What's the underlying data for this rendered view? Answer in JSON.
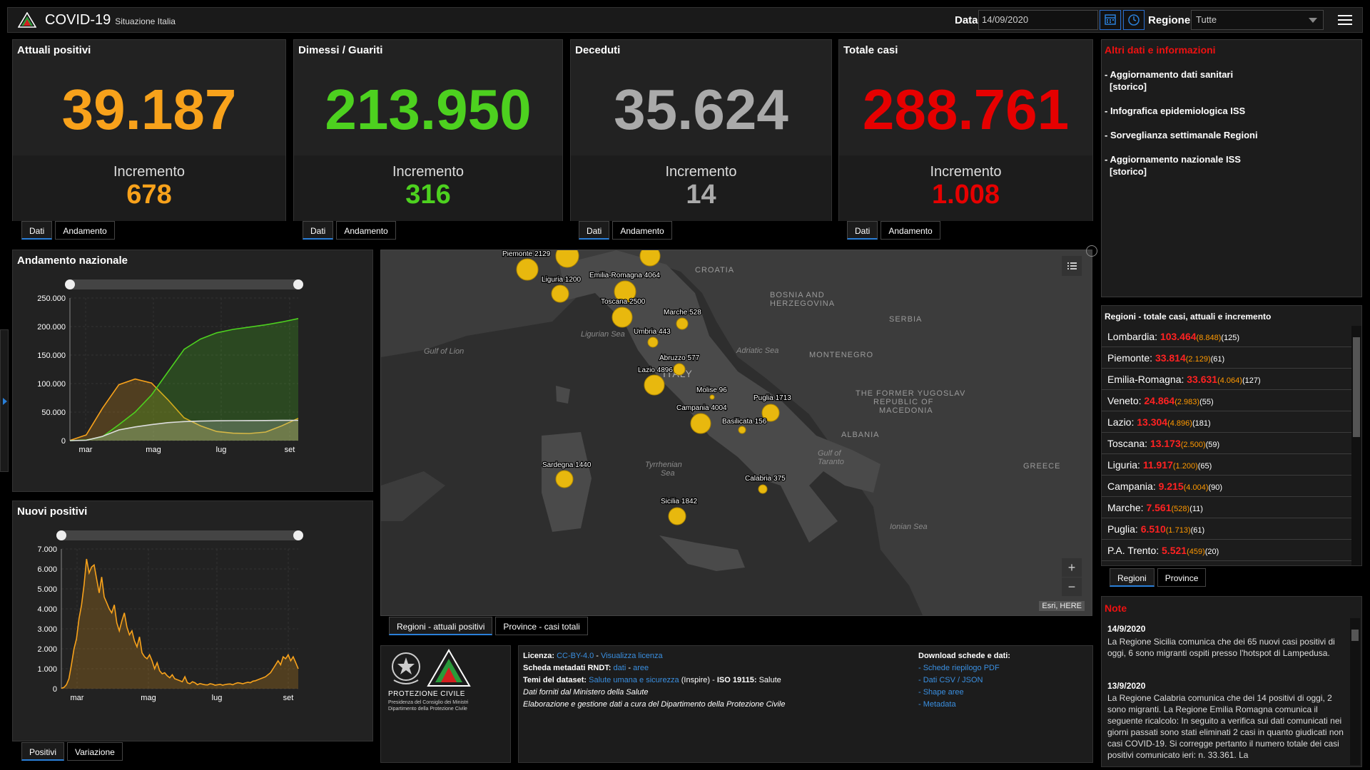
{
  "header": {
    "title": "COVID-19",
    "subtitle": "Situazione Italia",
    "date_label": "Data",
    "date_value": "14/09/2020",
    "region_label": "Regione",
    "region_value": "Tutte"
  },
  "cards": [
    {
      "title": "Attuali positivi",
      "value": "39.187",
      "inc_label": "Incremento",
      "inc": "678",
      "color": "#f8a21b"
    },
    {
      "title": "Dimessi / Guariti",
      "value": "213.950",
      "inc_label": "Incremento",
      "inc": "316",
      "color": "#4dd11f"
    },
    {
      "title": "Deceduti",
      "value": "35.624",
      "inc_label": "Incremento",
      "inc": "14",
      "color": "#aaaaaa"
    },
    {
      "title": "Totale casi",
      "value": "288.761",
      "inc_label": "Incremento",
      "inc": "1.008",
      "color": "#e60000"
    }
  ],
  "card_tabs": {
    "dati": "Dati",
    "andamento": "Andamento"
  },
  "info": {
    "title": "Altri dati e informazioni",
    "links": [
      "- Aggiornamento dati sanitari",
      "[storico]",
      "- Infografica epidemiologica ISS",
      "- Sorveglianza settimanale Regioni",
      "- Aggiornamento nazionale ISS",
      "[storico]"
    ]
  },
  "regions": {
    "title": "Regioni - totale casi, attuali e incremento",
    "rows": [
      {
        "name": "Lombardia:",
        "total": "103.464",
        "active": "(8.848)",
        "inc": "(125)"
      },
      {
        "name": "Piemonte:",
        "total": "33.814",
        "active": "(2.129)",
        "inc": "(61)"
      },
      {
        "name": "Emilia-Romagna:",
        "total": "33.631",
        "active": "(4.064)",
        "inc": "(127)"
      },
      {
        "name": "Veneto:",
        "total": "24.864",
        "active": "(2.983)",
        "inc": "(55)"
      },
      {
        "name": "Lazio:",
        "total": "13.304",
        "active": "(4.896)",
        "inc": "(181)"
      },
      {
        "name": "Toscana:",
        "total": "13.173",
        "active": "(2.500)",
        "inc": "(59)"
      },
      {
        "name": "Liguria:",
        "total": "11.917",
        "active": "(1.200)",
        "inc": "(65)"
      },
      {
        "name": "Campania:",
        "total": "9.215",
        "active": "(4.004)",
        "inc": "(90)"
      },
      {
        "name": "Marche:",
        "total": "7.561",
        "active": "(528)",
        "inc": "(11)"
      },
      {
        "name": "Puglia:",
        "total": "6.510",
        "active": "(1.713)",
        "inc": "(61)"
      },
      {
        "name": "P.A. Trento:",
        "total": "5.521",
        "active": "(459)",
        "inc": "(20)"
      }
    ],
    "tabs": [
      "Regioni",
      "Province"
    ]
  },
  "notes": {
    "title": "Note",
    "items": [
      {
        "date": "14/9/2020",
        "text": "La Regione Sicilia comunica che dei 65 nuovi casi positivi di oggi, 6 sono migranti ospiti presso l'hotspot di Lampedusa."
      },
      {
        "date": "13/9/2020",
        "text": "La Regione Calabria comunica che dei 14 positivi di oggi, 2 sono migranti. La Regione Emilia Romagna comunica il seguente ricalcolo: In seguito a verifica sui dati comunicati nei giorni passati sono stati eliminati 2 casi in quanto giudicati non casi COVID-19. Si corregge pertanto il numero totale dei casi positivi comunicato ieri: n. 33.361. La"
      }
    ]
  },
  "chart_nazionale": {
    "title": "Andamento nazionale",
    "chart_data": {
      "type": "area",
      "x": [
        "2020-02-24",
        "2020-03-10",
        "2020-03-25",
        "2020-04-10",
        "2020-04-20",
        "2020-05-01",
        "2020-05-15",
        "2020-06-01",
        "2020-06-15",
        "2020-07-01",
        "2020-07-15",
        "2020-08-01",
        "2020-08-15",
        "2020-09-01",
        "2020-09-14"
      ],
      "series": [
        {
          "values": [
            200,
            10000,
            57000,
            98000,
            108000,
            101000,
            72000,
            40000,
            26000,
            16000,
            13000,
            12500,
            15000,
            26000,
            39187
          ],
          "color": "#f8a21b"
        },
        {
          "values": [
            0,
            1000,
            7000,
            28000,
            50000,
            80000,
            120000,
            160000,
            178000,
            189000,
            195000,
            199000,
            203000,
            208000,
            213950
          ],
          "color": "#4dd11f"
        },
        {
          "values": [
            10,
            600,
            7500,
            18800,
            24000,
            28000,
            31500,
            33400,
            34300,
            34800,
            35000,
            35150,
            35250,
            35480,
            35624
          ],
          "color": "#dddddd"
        }
      ],
      "x_tick_labels": [
        "mar",
        "mag",
        "lug",
        "set"
      ],
      "y_ticks": [
        "250.000",
        "200.000",
        "150.000",
        "100.000",
        "50.000",
        "0"
      ],
      "ylim": [
        0,
        250000
      ]
    }
  },
  "chart_nuovi": {
    "title": "Nuovi positivi",
    "tabs": [
      "Positivi",
      "Variazione"
    ],
    "chart_data": {
      "type": "area",
      "series": [
        {
          "values": [
            20,
            60,
            200,
            500,
            1200,
            2000,
            2500,
            3500,
            4200,
            5200,
            6500,
            5800,
            6100,
            6200,
            5500,
            4800,
            5600,
            4600,
            4300,
            4000,
            3800,
            4200,
            3300,
            2900,
            3400,
            3800,
            3100,
            2700,
            2900,
            2400,
            2100,
            2600,
            1800,
            1600,
            1500,
            1700,
            1400,
            1000,
            1300,
            900,
            750,
            800,
            650,
            550,
            700,
            500,
            450,
            400,
            350,
            600,
            300,
            250,
            350,
            300,
            200,
            260,
            230,
            200,
            190,
            250,
            230,
            180,
            200,
            220,
            180,
            210,
            230,
            240,
            200,
            260,
            300,
            280,
            250,
            290,
            320,
            300,
            380,
            400,
            450,
            500,
            550,
            600,
            700,
            800,
            1000,
            1200,
            1400,
            1200,
            1600,
            1500,
            1700,
            1400,
            1600,
            1300,
            1000
          ],
          "color": "#f8a21b"
        }
      ],
      "x_tick_labels": [
        "mar",
        "mag",
        "lug",
        "set"
      ],
      "y_ticks": [
        "7.000",
        "6.000",
        "5.000",
        "4.000",
        "3.000",
        "2.000",
        "1.000",
        "0"
      ],
      "ylim": [
        0,
        7000
      ]
    }
  },
  "map": {
    "tabs": [
      "Regioni - attuali positivi",
      "Province - casi totali"
    ],
    "attribution": "Esri, HERE",
    "labels": {
      "croatia": "CROATIA",
      "bosnia_1": "BOSNIA AND",
      "bosnia_2": "HERZEGOVINA",
      "serbia": "SERBIA",
      "montenegro": "MONTENEGRO",
      "macedonia_1": "THE FORMER YUGOSLAV",
      "macedonia_2": "REPUBLIC OF",
      "macedonia_3": "MACEDONIA",
      "albania": "ALBANIA",
      "greece": "GREECE",
      "italy": "ITALY",
      "lion": "Gulf of Lion",
      "ligurian": "Ligurian Sea",
      "adriatic": "Adriatic Sea",
      "tyrrhenian_1": "Tyrrhenian",
      "tyrrhenian_2": "Sea",
      "taranto_1": "Gulf of",
      "taranto_2": "Taranto",
      "ionian": "Ionian Sea"
    },
    "bubbles": [
      {
        "label": "Piemonte 2129"
      },
      {
        "label": "Liguria 1200"
      },
      {
        "label": "Emilia-Romagna 4064"
      },
      {
        "label": "Toscana 2500"
      },
      {
        "label": "Marche 528"
      },
      {
        "label": "Umbria 443"
      },
      {
        "label": "Abruzzo 577"
      },
      {
        "label": "Lazio 4896"
      },
      {
        "label": "Molise 96"
      },
      {
        "label": "Puglia 1713"
      },
      {
        "label": "Campania 4004"
      },
      {
        "label": "Basilicata 156"
      },
      {
        "label": "Sardegna 1440"
      },
      {
        "label": "Calabria 375"
      },
      {
        "label": "Sicilia 1842"
      },
      {
        "label": ""
      },
      {
        "label": ""
      }
    ]
  },
  "footer": {
    "licenza": "Licenza:",
    "licenza_val": "CC-BY-4.0",
    "licenza_sep": " - ",
    "visualizza": "Visualizza licenza",
    "scheda": "Scheda metadati RNDT:",
    "scheda_dati": "dati",
    "scheda_sep": " - ",
    "scheda_aree": "aree",
    "temi": "Temi del dataset:",
    "temi_val": "Salute umana e sicurezza",
    "temi_rest": " (Inspire) - ",
    "iso": "ISO 19115:",
    "iso_val": " Salute",
    "fonte": "Dati forniti dal Ministero della Salute",
    "elaborazione": "Elaborazione e gestione dati a cura del Dipartimento della Protezione Civile",
    "download_title": "Download schede e dati:",
    "downloads": [
      "- Schede riepilogo PDF",
      "- Dati CSV / JSON",
      "- Shape aree",
      "- Metadata"
    ],
    "protezione": "PROTEZIONE CIVILE",
    "presidenza_1": "Presidenza del Consiglio dei Ministri",
    "presidenza_2": "Dipartimento della Protezione Civile"
  }
}
